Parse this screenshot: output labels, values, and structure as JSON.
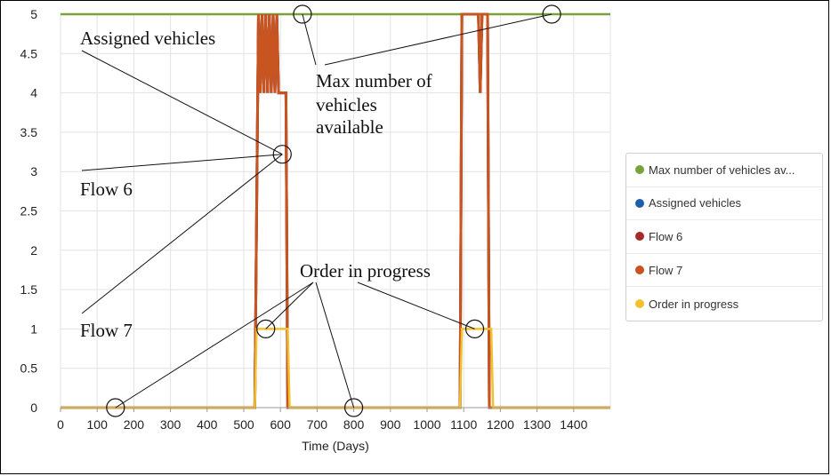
{
  "chart_data": {
    "type": "line",
    "xlabel": "Time (Days)",
    "ylabel": "",
    "xlim": [
      0,
      1500
    ],
    "ylim": [
      0,
      5
    ],
    "x_ticks": [
      0,
      100,
      200,
      300,
      400,
      500,
      600,
      700,
      800,
      900,
      1000,
      1100,
      1200,
      1300,
      1400
    ],
    "x_tick_labels": [
      "0",
      "100",
      "200",
      "300",
      "400",
      "500",
      "600",
      "700",
      "800",
      "900",
      "1000",
      "1100",
      "1200",
      "1300",
      "1400"
    ],
    "y_ticks": [
      0,
      0.5,
      1,
      1.5,
      2,
      2.5,
      3,
      3.5,
      4,
      4.5,
      5
    ],
    "y_tick_labels": [
      "0",
      "0.5",
      "1",
      "1.5",
      "2",
      "2.5",
      "3",
      "3.5",
      "4",
      "4.5",
      "5"
    ],
    "grid": true,
    "legend_position": "right",
    "series": [
      {
        "name": "Max number of vehicles av...",
        "color": "#7aa23a",
        "x": [
          0,
          1500
        ],
        "y": [
          5,
          5
        ]
      },
      {
        "name": "Assigned vehicles",
        "color": "#1f5fa8",
        "x": [
          0,
          530,
          540,
          545,
          550,
          555,
          560,
          565,
          570,
          575,
          580,
          585,
          590,
          595,
          600,
          605,
          610,
          615,
          620,
          625,
          1090,
          1095,
          1100,
          1105,
          1110,
          1115,
          1120,
          1125,
          1130,
          1135,
          1140,
          1145,
          1150,
          1155,
          1160,
          1165,
          1170,
          1175,
          1500
        ],
        "y": [
          0,
          0,
          5,
          4,
          5,
          4,
          5,
          4,
          5,
          4,
          5,
          4,
          5,
          4,
          4,
          4,
          4,
          4,
          0,
          0,
          0,
          5,
          5,
          5,
          5,
          5,
          5,
          5,
          5,
          5,
          5,
          4,
          5,
          5,
          5,
          5,
          0,
          0,
          0
        ]
      },
      {
        "name": "Flow 6",
        "color": "#a52a2a",
        "x": [
          0,
          530,
          540,
          545,
          550,
          555,
          560,
          565,
          570,
          575,
          580,
          585,
          590,
          595,
          600,
          605,
          610,
          615,
          620,
          625,
          1090,
          1095,
          1100,
          1105,
          1110,
          1115,
          1120,
          1125,
          1130,
          1135,
          1140,
          1145,
          1150,
          1155,
          1160,
          1165,
          1170,
          1175,
          1500
        ],
        "y": [
          0,
          0,
          5,
          4,
          5,
          4,
          5,
          4,
          5,
          4,
          5,
          4,
          5,
          4,
          4,
          4,
          4,
          4,
          0,
          0,
          0,
          5,
          5,
          5,
          5,
          5,
          5,
          5,
          5,
          5,
          5,
          4,
          5,
          5,
          5,
          5,
          0,
          0,
          0
        ]
      },
      {
        "name": "Flow 7",
        "color": "#c8541f",
        "x": [
          0,
          530,
          540,
          545,
          550,
          555,
          560,
          565,
          570,
          575,
          580,
          585,
          590,
          595,
          600,
          605,
          610,
          615,
          620,
          625,
          1090,
          1095,
          1100,
          1105,
          1110,
          1115,
          1120,
          1125,
          1130,
          1135,
          1140,
          1145,
          1150,
          1155,
          1160,
          1165,
          1170,
          1175,
          1500
        ],
        "y": [
          0,
          0,
          5,
          4,
          5,
          4,
          5,
          4,
          5,
          4,
          5,
          4,
          5,
          4,
          4,
          4,
          4,
          4,
          0,
          0,
          0,
          5,
          5,
          5,
          5,
          5,
          5,
          5,
          5,
          5,
          5,
          4,
          5,
          5,
          5,
          5,
          0,
          0,
          0
        ]
      },
      {
        "name": "Order in progress",
        "color": "#f2c12e",
        "x": [
          0,
          530,
          535,
          620,
          625,
          1090,
          1095,
          1175,
          1180,
          1500
        ],
        "y": [
          0,
          0,
          1,
          1,
          0,
          0,
          1,
          1,
          0,
          0
        ]
      }
    ],
    "annotations": [
      {
        "text": "Assigned vehicles"
      },
      {
        "text": "Max number of vehicles available",
        "lines": [
          "Max number of",
          "vehicles",
          "available"
        ]
      },
      {
        "text": "Flow 6"
      },
      {
        "text": "Flow 7"
      },
      {
        "text": "Order in progress"
      }
    ],
    "annotation_markers": [
      {
        "x": 660,
        "y": 5
      },
      {
        "x": 1340,
        "y": 5
      },
      {
        "x": 605,
        "y": 3.22
      },
      {
        "x": 560,
        "y": 1
      },
      {
        "x": 1130,
        "y": 1
      },
      {
        "x": 150,
        "y": 0
      },
      {
        "x": 800,
        "y": 0
      }
    ]
  }
}
